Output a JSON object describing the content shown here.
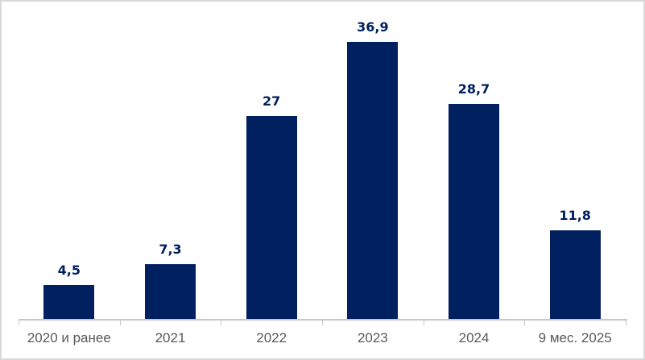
{
  "chart_data": {
    "type": "bar",
    "categories": [
      "2020 и ранее",
      "2021",
      "2022",
      "2023",
      "2024",
      "9 мес. 2025"
    ],
    "values": [
      4.5,
      7.3,
      27,
      36.9,
      28.7,
      11.8
    ],
    "value_labels": [
      "4,5",
      "7,3",
      "27",
      "36,9",
      "28,7",
      "11,8"
    ],
    "title": "",
    "xlabel": "",
    "ylabel": "",
    "ylim": [
      0,
      40
    ],
    "grid": false,
    "legend": false,
    "value_axis_visible": false,
    "colors": {
      "bar": "#002060",
      "value_label": "#002060",
      "axis_line": "#c6c6c6",
      "tick": "#c6c6c6",
      "category_label": "#595959",
      "frame_border": "#d9d9d9",
      "background": "#ffffff"
    }
  }
}
